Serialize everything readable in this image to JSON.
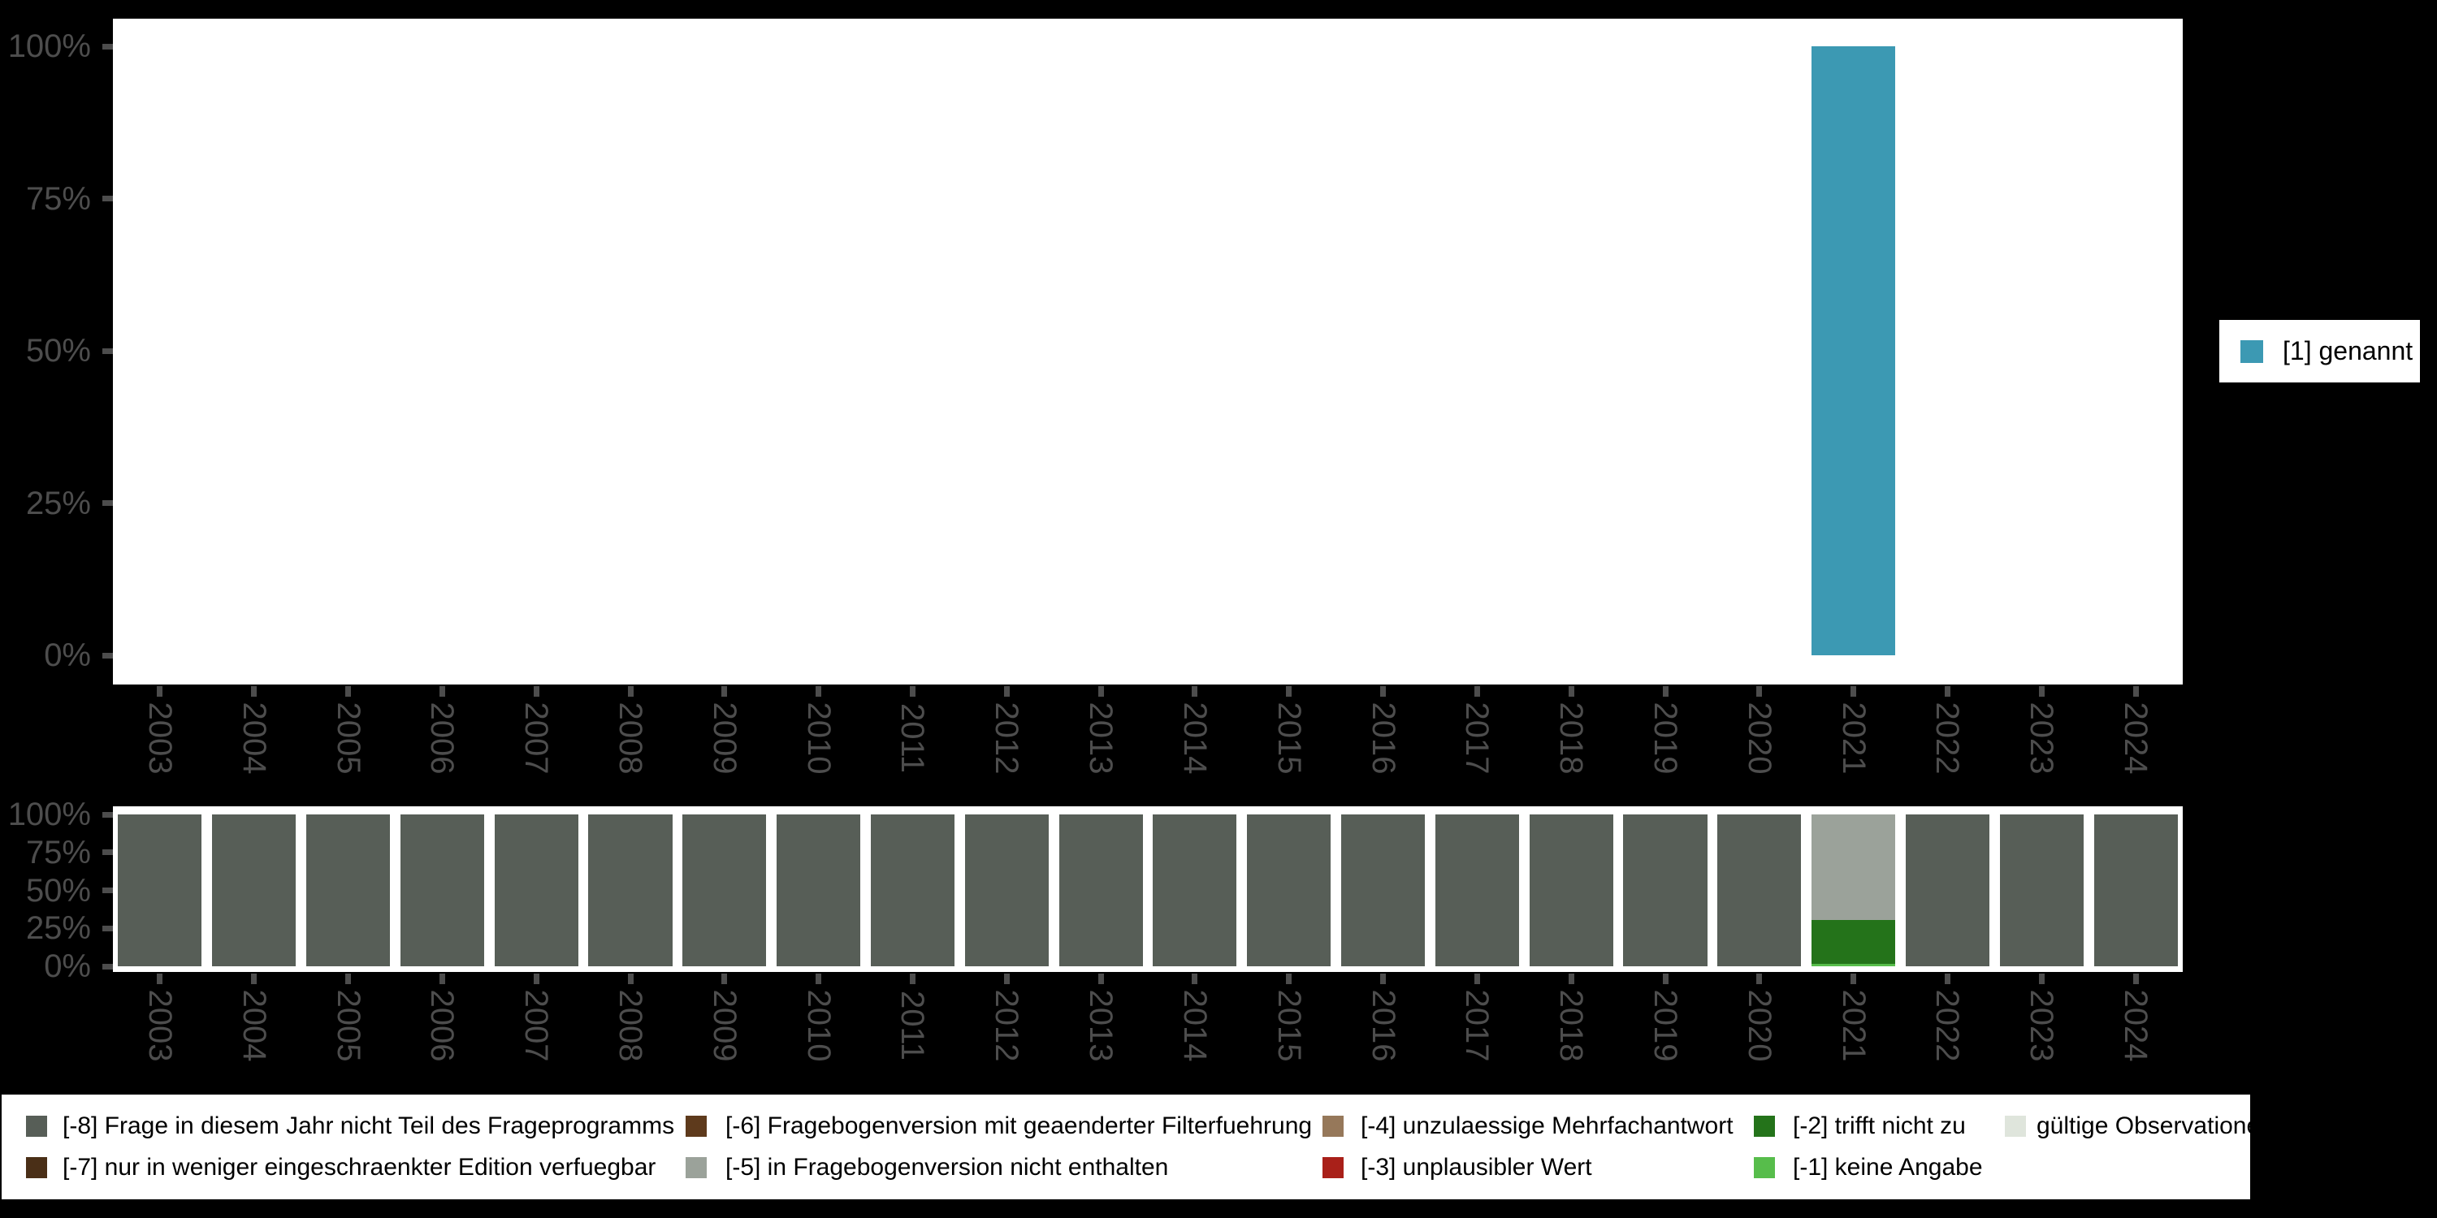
{
  "colors": {
    "background": "#000000",
    "plot_background": "#ffffff",
    "axis_text": "#4d4d4d",
    "legend_background": "#ffffff",
    "legend_text": "#000000"
  },
  "palette": {
    "genannt": "#3C99B3",
    "code_m8": "#575E57",
    "code_m7": "#4A2F17",
    "code_m6": "#5E3A1C",
    "code_m5": "#9BA29A",
    "code_m4": "#96785A",
    "code_m3": "#A92019",
    "code_m2": "#24731A",
    "code_m1": "#57BD4B",
    "valid": "#DFE5DC"
  },
  "top_legend": {
    "label": "[1] genannt",
    "color_key": "genannt"
  },
  "bottom_legend": {
    "columns": [
      [
        {
          "label": "[-8] Frage in diesem Jahr nicht Teil des Frageprogramms",
          "color_key": "code_m8"
        },
        {
          "label": "[-7] nur in weniger eingeschraenkter Edition verfuegbar",
          "color_key": "code_m7"
        }
      ],
      [
        {
          "label": "[-6] Fragebogenversion mit geaenderter Filterfuehrung",
          "color_key": "code_m6"
        },
        {
          "label": "[-5] in Fragebogenversion nicht enthalten",
          "color_key": "code_m5"
        }
      ],
      [
        {
          "label": "[-4] unzulaessige Mehrfachantwort",
          "color_key": "code_m4"
        },
        {
          "label": "[-3] unplausibler Wert",
          "color_key": "code_m3"
        }
      ],
      [
        {
          "label": "[-2] trifft nicht zu",
          "color_key": "code_m2"
        },
        {
          "label": "[-1] keine Angabe",
          "color_key": "code_m1"
        }
      ],
      [
        {
          "label": "gültige Observationen",
          "color_key": "valid"
        }
      ]
    ]
  },
  "chart_data": [
    {
      "type": "bar",
      "title": "",
      "xlabel": "",
      "ylabel": "",
      "ylim": [
        0,
        100
      ],
      "grid": false,
      "legend_position": "right",
      "y_ticks": [
        "100%",
        "75%",
        "50%",
        "25%",
        "0%"
      ],
      "y_tick_values": [
        100,
        75,
        50,
        25,
        0
      ],
      "categories": [
        "2003",
        "2004",
        "2005",
        "2006",
        "2007",
        "2008",
        "2009",
        "2010",
        "2011",
        "2012",
        "2013",
        "2014",
        "2015",
        "2016",
        "2017",
        "2018",
        "2019",
        "2020",
        "2021",
        "2022",
        "2023",
        "2024"
      ],
      "series": [
        {
          "name": "[1] genannt",
          "color_key": "genannt",
          "values": [
            0,
            0,
            0,
            0,
            0,
            0,
            0,
            0,
            0,
            0,
            0,
            0,
            0,
            0,
            0,
            0,
            0,
            0,
            100,
            0,
            0,
            0
          ]
        }
      ]
    },
    {
      "type": "stacked_bar",
      "title": "",
      "xlabel": "",
      "ylabel": "",
      "ylim": [
        0,
        100
      ],
      "grid": false,
      "legend_position": "bottom",
      "y_ticks": [
        "100%",
        "75%",
        "50%",
        "25%",
        "0%"
      ],
      "y_tick_values": [
        100,
        75,
        50,
        25,
        0
      ],
      "categories": [
        "2003",
        "2004",
        "2005",
        "2006",
        "2007",
        "2008",
        "2009",
        "2010",
        "2011",
        "2012",
        "2013",
        "2014",
        "2015",
        "2016",
        "2017",
        "2018",
        "2019",
        "2020",
        "2021",
        "2022",
        "2023",
        "2024"
      ],
      "series": [
        {
          "name": "[-8] Frage in diesem Jahr nicht Teil des Frageprogramms",
          "color_key": "code_m8",
          "values": [
            100,
            100,
            100,
            100,
            100,
            100,
            100,
            100,
            100,
            100,
            100,
            100,
            100,
            100,
            100,
            100,
            100,
            100,
            0,
            100,
            100,
            100
          ]
        },
        {
          "name": "[-5] in Fragebogenversion nicht enthalten",
          "color_key": "code_m5",
          "values": [
            0,
            0,
            0,
            0,
            0,
            0,
            0,
            0,
            0,
            0,
            0,
            0,
            0,
            0,
            0,
            0,
            0,
            0,
            69.5,
            0,
            0,
            0
          ]
        },
        {
          "name": "[-2] trifft nicht zu",
          "color_key": "code_m2",
          "values": [
            0,
            0,
            0,
            0,
            0,
            0,
            0,
            0,
            0,
            0,
            0,
            0,
            0,
            0,
            0,
            0,
            0,
            0,
            29,
            0,
            0,
            0
          ]
        },
        {
          "name": "[-1] keine Angabe",
          "color_key": "code_m1",
          "values": [
            0,
            0,
            0,
            0,
            0,
            0,
            0,
            0,
            0,
            0,
            0,
            0,
            0,
            0,
            0,
            0,
            0,
            0,
            1.5,
            0,
            0,
            0
          ]
        }
      ]
    }
  ]
}
